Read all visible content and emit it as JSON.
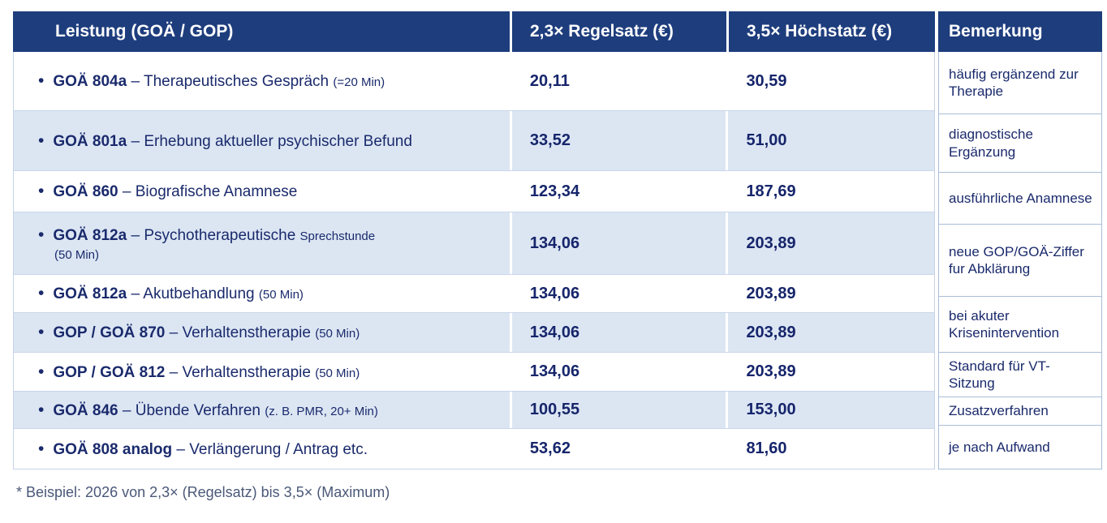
{
  "header": {
    "leistung": "Leistung (GOÄ / GOP)",
    "regelsatz": "2,3× Regelsatz (€)",
    "hoechstsatz": "3,5× Höchstatz (€)",
    "bemerkung": "Bemerkung"
  },
  "rows": [
    {
      "code": "GOÄ 804a",
      "title": "– Therapeutisches Gespräch",
      "note": "(=20 Min)",
      "note2": "",
      "regelsatz": "20,11",
      "hoechstsatz": "30,59"
    },
    {
      "code": "GOÄ 801a",
      "title": "– Erhebung aktueller psychischer Befund",
      "note": "",
      "note2": "",
      "regelsatz": "33,52",
      "hoechstsatz": "51,00"
    },
    {
      "code": "GOÄ 860",
      "title": "– Biografische Anamnese",
      "note": "",
      "note2": "",
      "regelsatz": "123,34",
      "hoechstsatz": "187,69"
    },
    {
      "code": "GOÄ 812a",
      "title": "– Psychotherapeutische",
      "note": "Sprechstunde",
      "note2": "(50 Min)",
      "regelsatz": "134,06",
      "hoechstsatz": "203,89"
    },
    {
      "code": "GOÄ 812a",
      "title": "– Akutbehandlung",
      "note": "(50 Min)",
      "note2": "",
      "regelsatz": "134,06",
      "hoechstsatz": "203,89"
    },
    {
      "code": "GOP / GOÄ 870",
      "title": "– Verhaltenstherapie",
      "note": "(50 Min)",
      "note2": "",
      "regelsatz": "134,06",
      "hoechstsatz": "203,89"
    },
    {
      "code": "GOP / GOÄ 812",
      "title": "– Verhaltenstherapie",
      "note": "(50 Min)",
      "note2": "",
      "regelsatz": "134,06",
      "hoechstsatz": "203,89"
    },
    {
      "code": "GOÄ 846",
      "title": "– Übende Verfahren",
      "note": "(z. B. PMR, 20+ Min)",
      "note2": "",
      "regelsatz": "100,55",
      "hoechstsatz": "153,00"
    },
    {
      "code": "GOÄ 808 analog",
      "title": "– Verlängerung / Antrag etc.",
      "note": "",
      "note2": "",
      "regelsatz": "53,62",
      "hoechstsatz": "81,60"
    }
  ],
  "remarks": [
    "häufig ergänzend zur Therapie",
    "diagnostische Ergänzung",
    "ausführliche Anamnese",
    "neue GOP/GOÄ-Ziffer fur Abklärung",
    "bei akuter Krisenintervention",
    "Standard für VT-Sitzung",
    "Zusatzverfahren",
    "je nach Aufwand"
  ],
  "footnote": "* Beispiel: 2026 von 2,3× (Regelsatz) bis 3,5× (Maximum)",
  "colors": {
    "header_bg": "#1e3d7d",
    "alt_row_bg": "#dce6f3",
    "text": "#1a2a6c"
  }
}
